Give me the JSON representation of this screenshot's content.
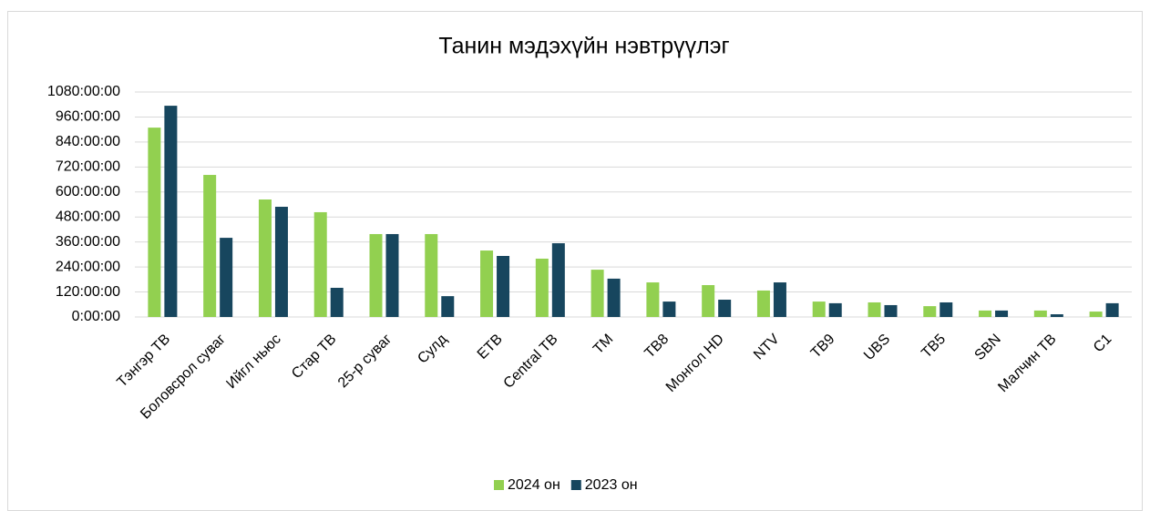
{
  "chart_data": {
    "type": "bar",
    "title": "Танин мэдэхүйн нэвтрүүлэг",
    "categories": [
      "Тэнгэр ТВ",
      "Боловсрол суваг",
      "Ийгл ньюс",
      "Стар ТВ",
      "25-р суваг",
      "Сулд",
      "ЕТВ",
      "Central ТВ",
      "ТМ",
      "ТВ8",
      "Монгол HD",
      "NTV",
      "ТВ9",
      "UBS",
      "ТВ5",
      "SBN",
      "Малчин ТВ",
      "С1"
    ],
    "series": [
      {
        "name": "2024 он",
        "color": "#92d050",
        "values": [
          909,
          682,
          564,
          503,
          398,
          398,
          319,
          280,
          227,
          166,
          153,
          127,
          74,
          70,
          52,
          31,
          31,
          26
        ]
      },
      {
        "name": "2023 он",
        "color": "#17465e",
        "values": [
          1014,
          380,
          529,
          140,
          398,
          100,
          293,
          354,
          184,
          74,
          83,
          166,
          66,
          57,
          70,
          31,
          13,
          66
        ]
      }
    ],
    "ylim": [
      0,
      1080
    ],
    "yticks": [
      {
        "value": 0,
        "label": "0:00:00"
      },
      {
        "value": 120,
        "label": "120:00:00"
      },
      {
        "value": 240,
        "label": "240:00:00"
      },
      {
        "value": 360,
        "label": "360:00:00"
      },
      {
        "value": 480,
        "label": "480:00:00"
      },
      {
        "value": 600,
        "label": "600:00:00"
      },
      {
        "value": 720,
        "label": "720:00:00"
      },
      {
        "value": 840,
        "label": "840:00:00"
      },
      {
        "value": 960,
        "label": "960:00:00"
      },
      {
        "value": 1080,
        "label": "1080:00:00"
      }
    ],
    "grid": true,
    "legend": "bottom"
  }
}
